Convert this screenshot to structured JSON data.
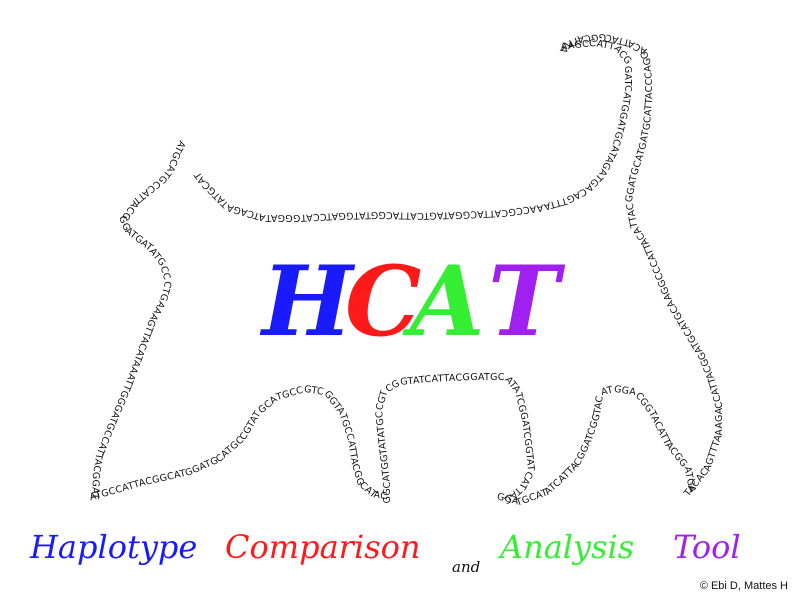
{
  "logo": {
    "letters": [
      {
        "char": "H",
        "color": "#1a1aff"
      },
      {
        "char": "C",
        "color": "#ff1a1a"
      },
      {
        "char": "A",
        "color": "#33ee33"
      },
      {
        "char": "T",
        "color": "#a020f0"
      }
    ]
  },
  "tagline": [
    {
      "text": "Haplotype",
      "color": "#1a1aff"
    },
    {
      "text": "Comparison",
      "color": "#ff1a1a"
    },
    {
      "text": "and",
      "color": "#111111"
    },
    {
      "text": "Analysis",
      "color": "#33ee33"
    },
    {
      "text": "Tool",
      "color": "#a020f0"
    }
  ],
  "copyright": "© Ebi D, Mattes H",
  "dna_sequence": "ATGCATGCCATTACGGGATGATATGCCCTGAAAGTTACATAAATTGGGATGCCATTACGGATATGCCATTACGGCATGGATGCATGCCGTATGCATGCCGTCGGTATGCCATTACGGCATACGGCATGGTATATGCCGTCGGTATCATTACGGATGCATATCGGATCGGTATCATTACGGATGCATATCATTACGGATCGGTACATGGACGGTACATTACGGATGATACACAGTTTAAAGACCATTACGGATGCATGCAAGGCCCATTACATTACGGATGCATGATGCATTACCCAGGACATTACGGCATTTAAAGCCATTACGGATCATGGATGCATAGATGACAGTTTAAACCGCATTACGGATAGTCATTACGGTATGGATCCATGGGATATCAGATATGCAT"
}
